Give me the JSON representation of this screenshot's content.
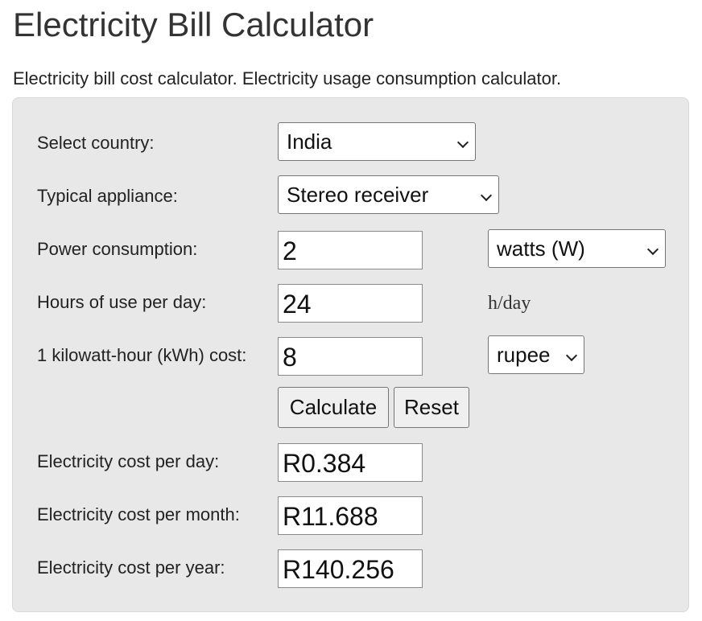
{
  "page": {
    "title": "Electricity Bill Calculator",
    "description": "Electricity bill cost calculator. Electricity usage consumption calculator."
  },
  "form": {
    "country": {
      "label": "Select country:",
      "value": "India"
    },
    "appliance": {
      "label": "Typical appliance:",
      "value": "Stereo receiver"
    },
    "power": {
      "label": "Power consumption:",
      "value": "2",
      "unit_value": "watts (W)"
    },
    "hours": {
      "label": "Hours of use per day:",
      "value": "24",
      "unit": "h/day"
    },
    "kwh_cost": {
      "label": "1 kilowatt-hour (kWh) cost:",
      "value": "8",
      "currency_value": "rupee"
    },
    "buttons": {
      "calculate": "Calculate",
      "reset": "Reset"
    }
  },
  "results": {
    "per_day": {
      "label": "Electricity cost per day:",
      "value": "R0.384"
    },
    "per_month": {
      "label": "Electricity cost per month:",
      "value": "R11.688"
    },
    "per_year": {
      "label": "Electricity cost per year:",
      "value": "R140.256"
    }
  },
  "icons": {
    "dropdown": "chevron-down-icon"
  },
  "colors": {
    "panel": "#e8e8e8",
    "text": "#333333",
    "button": "#efefef"
  }
}
